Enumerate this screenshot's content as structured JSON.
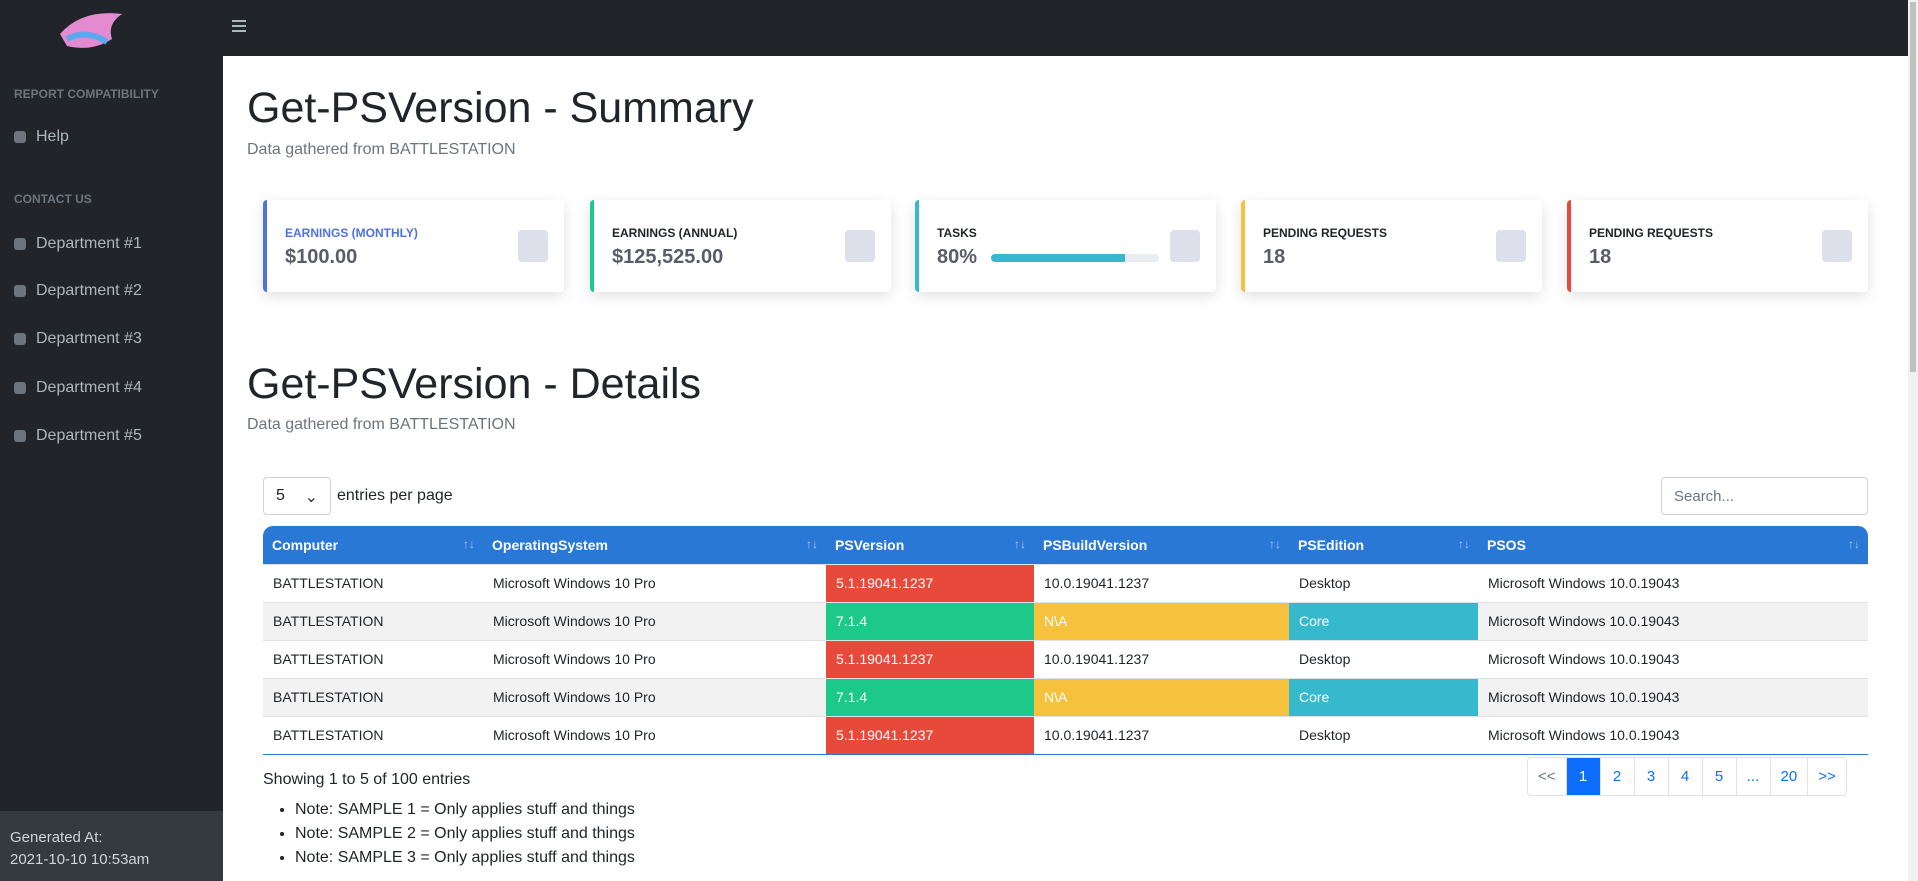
{
  "sidebar": {
    "sections": [
      {
        "title": "REPORT COMPATIBILITY",
        "items": [
          "Help"
        ]
      },
      {
        "title": "CONTACT US",
        "items": [
          "Department #1",
          "Department #2",
          "Department #3",
          "Department #4",
          "Department #5"
        ]
      }
    ],
    "generated_label": "Generated At:",
    "generated_at": "2021-10-10 10:53am"
  },
  "summary": {
    "title": "Get-PSVersion - Summary",
    "subtitle": "Data gathered from BATTLESTATION"
  },
  "cards": [
    {
      "label": "EARNINGS (MONTHLY)",
      "value": "$100.00",
      "color": "#4e73df"
    },
    {
      "label": "EARNINGS (ANNUAL)",
      "value": "$125,525.00",
      "color": "#1cc88a"
    },
    {
      "label": "TASKS",
      "value": "80%",
      "progress": 80,
      "color": "#36b9cc"
    },
    {
      "label": "PENDING REQUESTS",
      "value": "18",
      "color": "#f6c23e"
    },
    {
      "label": "PENDING REQUESTS",
      "value": "18",
      "color": "#e74a3b"
    }
  ],
  "details": {
    "title": "Get-PSVersion - Details",
    "subtitle": "Data gathered from BATTLESTATION"
  },
  "table": {
    "page_size": "5",
    "page_size_label": "entries per page",
    "search_placeholder": "Search...",
    "columns": [
      "Computer",
      "OperatingSystem",
      "PSVersion",
      "PSBuildVersion",
      "PSEdition",
      "PSOS"
    ],
    "rows": [
      [
        "BATTLESTATION",
        "Microsoft Windows 10 Pro",
        "5.1.19041.1237",
        "10.0.19041.1237",
        "Desktop",
        "Microsoft Windows 10.0.19043"
      ],
      [
        "BATTLESTATION",
        "Microsoft Windows 10 Pro",
        "7.1.4",
        "N\\A",
        "Core",
        "Microsoft Windows 10.0.19043"
      ],
      [
        "BATTLESTATION",
        "Microsoft Windows 10 Pro",
        "5.1.19041.1237",
        "10.0.19041.1237",
        "Desktop",
        "Microsoft Windows 10.0.19043"
      ],
      [
        "BATTLESTATION",
        "Microsoft Windows 10 Pro",
        "7.1.4",
        "N\\A",
        "Core",
        "Microsoft Windows 10.0.19043"
      ],
      [
        "BATTLESTATION",
        "Microsoft Windows 10 Pro",
        "5.1.19041.1237",
        "10.0.19041.1237",
        "Desktop",
        "Microsoft Windows 10.0.19043"
      ]
    ],
    "cell_colors": [
      [
        null,
        null,
        "#e74a3b",
        null,
        null,
        null
      ],
      [
        null,
        null,
        "#1cc88a",
        "#f6c23e",
        "#36b9cc",
        null
      ],
      [
        null,
        null,
        "#e74a3b",
        null,
        null,
        null
      ],
      [
        null,
        null,
        "#1cc88a",
        "#f6c23e",
        "#36b9cc",
        null
      ],
      [
        null,
        null,
        "#e74a3b",
        null,
        null,
        null
      ]
    ],
    "info": "Showing 1 to 5 of 100 entries"
  },
  "pagination": [
    "<<",
    "1",
    "2",
    "3",
    "4",
    "5",
    "...",
    "20",
    ">>"
  ],
  "notes": [
    "Note: SAMPLE 1 = Only applies stuff and things",
    "Note: SAMPLE 2 = Only applies stuff and things",
    "Note: SAMPLE 3 = Only applies stuff and things"
  ]
}
